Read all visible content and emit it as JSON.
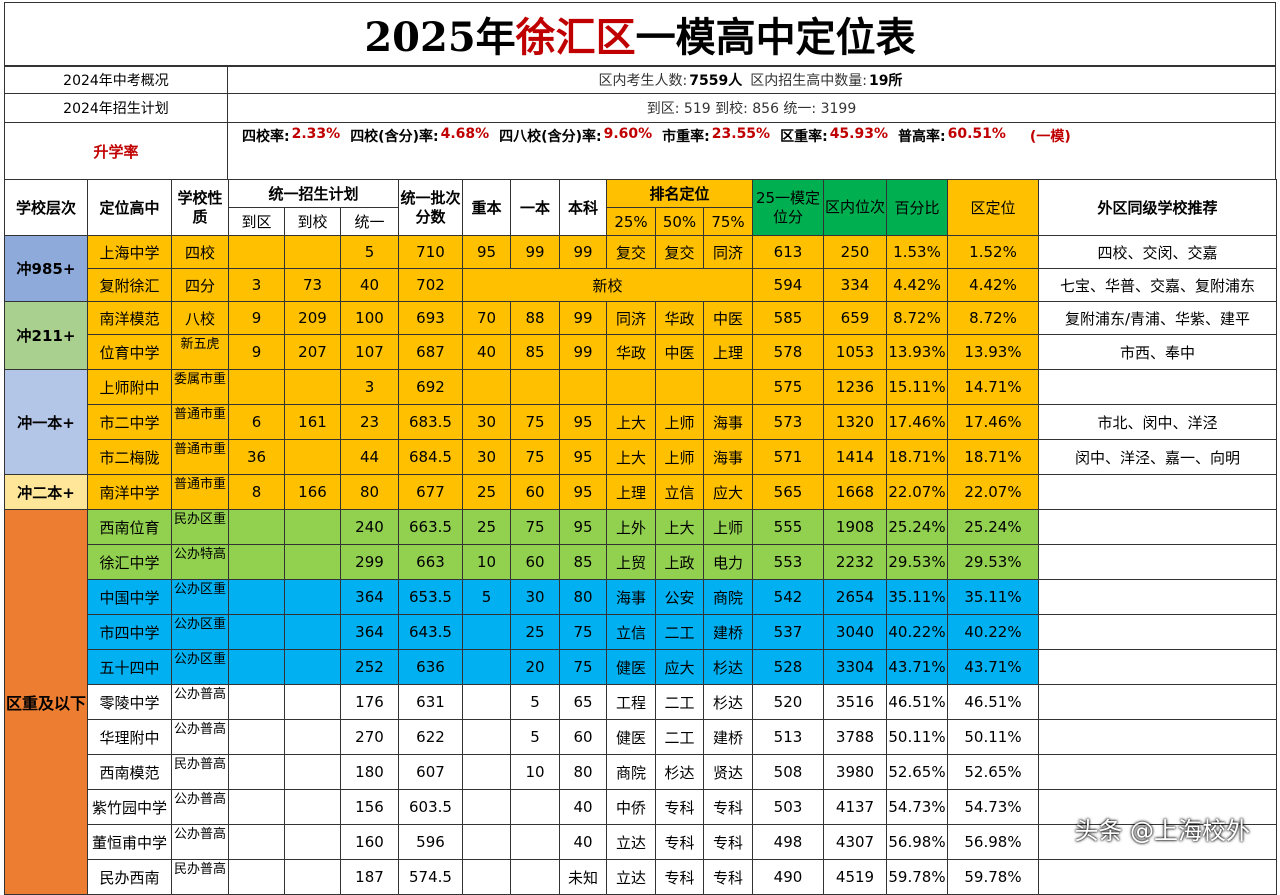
{
  "title": {
    "prefix": "2025年",
    "district": "徐汇区",
    "suffix": "一模高中定位表"
  },
  "info": {
    "row1_label": "2024年中考概况",
    "row1_text1": "区内考生人数:",
    "row1_num1": "7559人",
    "row1_text2": "区内招生高中数量:",
    "row1_num2": "19所",
    "row2_label": "2024年招生计划",
    "row2_text": "到区: 519  到校: 856  统一: 3199",
    "rate_label": "升学率",
    "rates": [
      {
        "k": "四校率:",
        "v": "2.33%"
      },
      {
        "k": "四校(含分)率:",
        "v": "4.68%"
      },
      {
        "k": "四八校(含分)率:",
        "v": "9.60%"
      },
      {
        "k": "市重率:",
        "v": "23.55%"
      },
      {
        "k": "区重率:",
        "v": "45.93%"
      },
      {
        "k": "普高率:",
        "v": "60.51%"
      }
    ],
    "rate_note": "(一模)"
  },
  "headers": {
    "tier": "学校层次",
    "school": "定位高中",
    "nature": "学校性质",
    "plan": "统一招生计划",
    "plan_d": "到区",
    "plan_x": "到校",
    "plan_t": "统一",
    "batch": "统一批次分数",
    "zb": "重本",
    "yb": "一本",
    "bk": "本科",
    "rank": "排名定位",
    "r25": "25%",
    "r50": "50%",
    "r75": "75%",
    "mock": "25一模定位分",
    "rank_in": "区内位次",
    "pct": "百分比",
    "dist": "区定位",
    "rec": "外区同级学校推荐"
  },
  "tiers": [
    "冲985+",
    "冲211+",
    "冲一本+",
    "冲二本+",
    "区重及以下"
  ],
  "rows": [
    {
      "school": "上海中学",
      "nature": "四校",
      "d": "",
      "x": "",
      "t": "5",
      "batch": "710",
      "zb": "95",
      "yb": "99",
      "bk": "99",
      "r25": "复交",
      "r50": "复交",
      "r75": "同济",
      "mock": "613",
      "rank": "250",
      "pct": "1.53%",
      "dist": "1.52%",
      "rec": "四校、交闵、交嘉"
    },
    {
      "school": "复附徐汇",
      "nature": "四分",
      "d": "3",
      "x": "73",
      "t": "40",
      "batch": "702",
      "merged": "新校",
      "mock": "594",
      "rank": "334",
      "pct": "4.42%",
      "dist": "4.42%",
      "rec": "七宝、华普、交嘉、复附浦东"
    },
    {
      "school": "南洋模范",
      "nature": "八校",
      "d": "9",
      "x": "209",
      "t": "100",
      "batch": "693",
      "zb": "70",
      "yb": "88",
      "bk": "99",
      "r25": "同济",
      "r50": "华政",
      "r75": "中医",
      "mock": "585",
      "rank": "659",
      "pct": "8.72%",
      "dist": "8.72%",
      "rec": "复附浦东/青浦、华紫、建平"
    },
    {
      "school": "位育中学",
      "nature": "新五虎",
      "d": "9",
      "x": "207",
      "t": "107",
      "batch": "687",
      "zb": "40",
      "yb": "85",
      "bk": "99",
      "r25": "华政",
      "r50": "中医",
      "r75": "上理",
      "mock": "578",
      "rank": "1053",
      "pct": "13.93%",
      "dist": "13.93%",
      "rec": "市西、奉中"
    },
    {
      "school": "上师附中",
      "nature": "委属市重",
      "d": "",
      "x": "",
      "t": "3",
      "batch": "692",
      "zb": "",
      "yb": "",
      "bk": "",
      "r25": "",
      "r50": "",
      "r75": "",
      "mock": "575",
      "rank": "1236",
      "pct": "15.11%",
      "dist": "14.71%",
      "rec": ""
    },
    {
      "school": "市二中学",
      "nature": "普通市重",
      "d": "6",
      "x": "161",
      "t": "23",
      "batch": "683.5",
      "zb": "30",
      "yb": "75",
      "bk": "95",
      "r25": "上大",
      "r50": "上师",
      "r75": "海事",
      "mock": "573",
      "rank": "1320",
      "pct": "17.46%",
      "dist": "17.46%",
      "rec": "市北、闵中、洋泾"
    },
    {
      "school": "市二梅陇",
      "nature": "普通市重",
      "d": "36",
      "x": "",
      "t": "44",
      "batch": "684.5",
      "zb": "30",
      "yb": "75",
      "bk": "95",
      "r25": "上大",
      "r50": "上师",
      "r75": "海事",
      "mock": "571",
      "rank": "1414",
      "pct": "18.71%",
      "dist": "18.71%",
      "rec": "闵中、洋泾、嘉一、向明"
    },
    {
      "school": "南洋中学",
      "nature": "普通市重",
      "d": "8",
      "x": "166",
      "t": "80",
      "batch": "677",
      "zb": "25",
      "yb": "60",
      "bk": "95",
      "r25": "上理",
      "r50": "立信",
      "r75": "应大",
      "mock": "565",
      "rank": "1668",
      "pct": "22.07%",
      "dist": "22.07%",
      "rec": ""
    },
    {
      "school": "西南位育",
      "nature": "民办区重",
      "d": "",
      "x": "",
      "t": "240",
      "batch": "663.5",
      "zb": "25",
      "yb": "75",
      "bk": "95",
      "r25": "上外",
      "r50": "上大",
      "r75": "上师",
      "mock": "555",
      "rank": "1908",
      "pct": "25.24%",
      "dist": "25.24%",
      "rec": ""
    },
    {
      "school": "徐汇中学",
      "nature": "公办特高",
      "d": "",
      "x": "",
      "t": "299",
      "batch": "663",
      "zb": "10",
      "yb": "60",
      "bk": "85",
      "r25": "上贸",
      "r50": "上政",
      "r75": "电力",
      "mock": "553",
      "rank": "2232",
      "pct": "29.53%",
      "dist": "29.53%",
      "rec": ""
    },
    {
      "school": "中国中学",
      "nature": "公办区重",
      "d": "",
      "x": "",
      "t": "364",
      "batch": "653.5",
      "zb": "5",
      "yb": "30",
      "bk": "80",
      "r25": "海事",
      "r50": "公安",
      "r75": "商院",
      "mock": "542",
      "rank": "2654",
      "pct": "35.11%",
      "dist": "35.11%",
      "rec": ""
    },
    {
      "school": "市四中学",
      "nature": "公办区重",
      "d": "",
      "x": "",
      "t": "364",
      "batch": "643.5",
      "zb": "",
      "yb": "25",
      "bk": "75",
      "r25": "立信",
      "r50": "二工",
      "r75": "建桥",
      "mock": "537",
      "rank": "3040",
      "pct": "40.22%",
      "dist": "40.22%",
      "rec": ""
    },
    {
      "school": "五十四中",
      "nature": "公办区重",
      "d": "",
      "x": "",
      "t": "252",
      "batch": "636",
      "zb": "",
      "yb": "20",
      "bk": "75",
      "r25": "健医",
      "r50": "应大",
      "r75": "杉达",
      "mock": "528",
      "rank": "3304",
      "pct": "43.71%",
      "dist": "43.71%",
      "rec": ""
    },
    {
      "school": "零陵中学",
      "nature": "公办普高",
      "d": "",
      "x": "",
      "t": "176",
      "batch": "631",
      "zb": "",
      "yb": "5",
      "bk": "65",
      "r25": "工程",
      "r50": "二工",
      "r75": "杉达",
      "mock": "520",
      "rank": "3516",
      "pct": "46.51%",
      "dist": "46.51%",
      "rec": ""
    },
    {
      "school": "华理附中",
      "nature": "公办普高",
      "d": "",
      "x": "",
      "t": "270",
      "batch": "622",
      "zb": "",
      "yb": "5",
      "bk": "60",
      "r25": "健医",
      "r50": "二工",
      "r75": "建桥",
      "mock": "513",
      "rank": "3788",
      "pct": "50.11%",
      "dist": "50.11%",
      "rec": ""
    },
    {
      "school": "西南模范",
      "nature": "民办普高",
      "d": "",
      "x": "",
      "t": "180",
      "batch": "607",
      "zb": "",
      "yb": "10",
      "bk": "80",
      "r25": "商院",
      "r50": "杉达",
      "r75": "贤达",
      "mock": "508",
      "rank": "3980",
      "pct": "52.65%",
      "dist": "52.65%",
      "rec": ""
    },
    {
      "school": "紫竹园中学",
      "nature": "公办普高",
      "d": "",
      "x": "",
      "t": "156",
      "batch": "603.5",
      "zb": "",
      "yb": "",
      "bk": "40",
      "r25": "中侨",
      "r50": "专科",
      "r75": "专科",
      "mock": "503",
      "rank": "4137",
      "pct": "54.73%",
      "dist": "54.73%",
      "rec": ""
    },
    {
      "school": "董恒甫中学",
      "nature": "公办普高",
      "d": "",
      "x": "",
      "t": "160",
      "batch": "596",
      "zb": "",
      "yb": "",
      "bk": "40",
      "r25": "立达",
      "r50": "专科",
      "r75": "专科",
      "mock": "498",
      "rank": "4307",
      "pct": "56.98%",
      "dist": "56.98%",
      "rec": ""
    },
    {
      "school": "民办西南",
      "nature": "民办普高",
      "d": "",
      "x": "",
      "t": "187",
      "batch": "574.5",
      "zb": "",
      "yb": "",
      "bk": "未知",
      "r25": "立达",
      "r50": "专科",
      "r75": "专科",
      "mock": "490",
      "rank": "4519",
      "pct": "59.78%",
      "dist": "59.78%",
      "rec": ""
    }
  ],
  "watermark": "头条 @上海校外",
  "colors": {
    "orange": "#ffc000",
    "green": "#92d050",
    "blue": "#00b0f0",
    "dark_green": "#00b050",
    "title_red": "#c00000"
  }
}
